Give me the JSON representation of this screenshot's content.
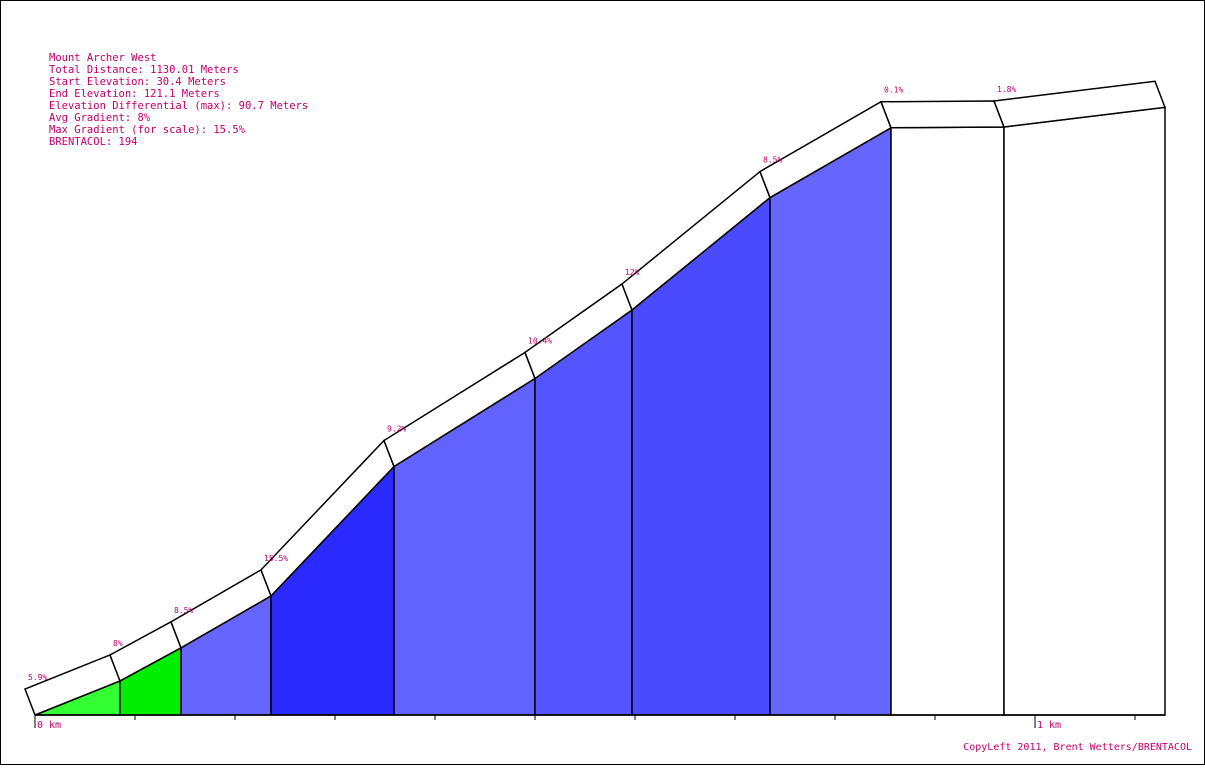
{
  "info": {
    "title": "Mount Archer West",
    "total_distance": "Total Distance: 1130.01 Meters",
    "start_elevation": "Start Elevation: 30.4 Meters",
    "end_elevation": "End Elevation: 121.1 Meters",
    "elevation_differential": "Elevation Differential (max): 90.7 Meters",
    "avg_gradient": "Avg Gradient: 8%",
    "max_gradient": "Max Gradient (for scale): 15.5%",
    "brentacol": "BRENTACOL: 194"
  },
  "copyright": "CopyLeft 2011, Brent Wetters/BRENTACOL",
  "chart_data": {
    "type": "area",
    "title": "Mount Archer West",
    "x_unit": "km",
    "x_tick_labels": [
      {
        "km": 0,
        "label": "0 km"
      },
      {
        "km": 1,
        "label": "1 km"
      }
    ],
    "x_minor_tick_km": 0.1,
    "x_range_km": [
      0,
      1.13001
    ],
    "start_elevation_m": 30.4,
    "end_elevation_m": 121.1,
    "segments": [
      {
        "start_km": 0.0,
        "end_km": 0.085,
        "gradient": 5.9,
        "label": "5.9%",
        "color": "#33ff33"
      },
      {
        "start_km": 0.085,
        "end_km": 0.146,
        "gradient": 8.0,
        "label": "8%",
        "color": "#00ee00"
      },
      {
        "start_km": 0.146,
        "end_km": 0.236,
        "gradient": 8.5,
        "label": "8.5%",
        "color": "#6666ff"
      },
      {
        "start_km": 0.236,
        "end_km": 0.359,
        "gradient": 15.5,
        "label": "15.5%",
        "color": "#2a2aff"
      },
      {
        "start_km": 0.359,
        "end_km": 0.5,
        "gradient": 9.2,
        "label": "9.2%",
        "color": "#6262ff"
      },
      {
        "start_km": 0.5,
        "end_km": 0.597,
        "gradient": 10.4,
        "label": "10.4%",
        "color": "#5555ff"
      },
      {
        "start_km": 0.597,
        "end_km": 0.735,
        "gradient": 12.0,
        "label": "12%",
        "color": "#4a4aff"
      },
      {
        "start_km": 0.735,
        "end_km": 0.856,
        "gradient": 8.5,
        "label": "8.5%",
        "color": "#6666ff"
      },
      {
        "start_km": 0.856,
        "end_km": 0.969,
        "gradient": 0.1,
        "label": "0.1%",
        "color": "#ffffff"
      },
      {
        "start_km": 0.969,
        "end_km": 1.13,
        "gradient": 1.8,
        "label": "1.8%",
        "color": "#ffffff"
      }
    ]
  }
}
